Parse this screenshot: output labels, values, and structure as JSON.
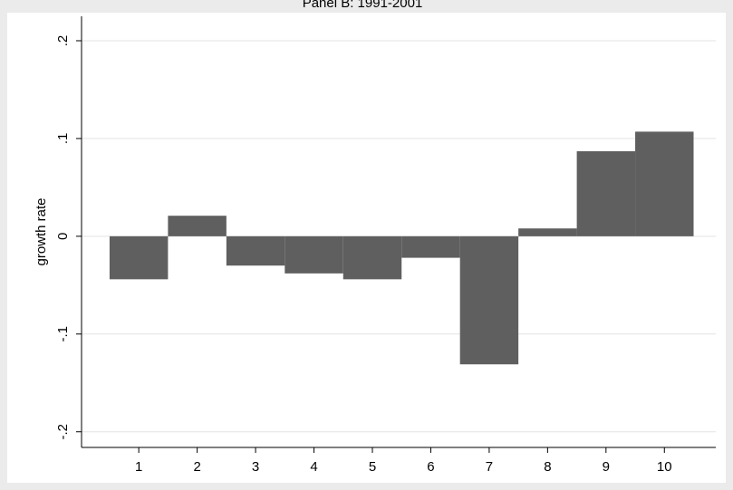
{
  "chart_data": {
    "type": "bar",
    "title": "Panel B: 1991-2001",
    "y_label": "growth rate",
    "x": [
      1,
      2,
      3,
      4,
      5,
      6,
      7,
      8,
      9,
      10
    ],
    "values": [
      -0.044,
      0.021,
      -0.03,
      -0.038,
      -0.044,
      -0.022,
      -0.131,
      0.008,
      0.087,
      0.107
    ],
    "color": "#5f5f5f",
    "xlim": [
      0.02,
      10.88
    ],
    "xticks": [
      1,
      2,
      3,
      4,
      5,
      6,
      7,
      8,
      9,
      10
    ],
    "ylim": [
      -0.216,
      0.225
    ],
    "yticks": [
      {
        "value": -0.2,
        "label": "-.2"
      },
      {
        "value": -0.1,
        "label": "-.1"
      },
      0,
      {
        "value": 0.1,
        "label": ".1"
      },
      {
        "value": 0.2,
        "label": ".2"
      }
    ],
    "grid": true
  }
}
